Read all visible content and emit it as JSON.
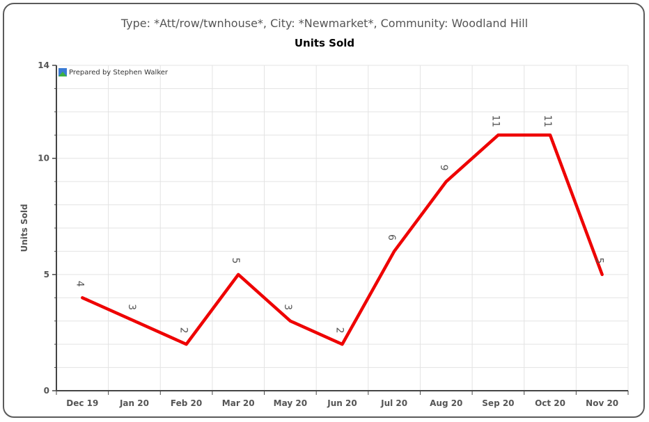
{
  "subtitle": "Type: *Att/row/twnhouse*, City: *Newmarket*, Community: Woodland Hill",
  "credit": "Prepared by Stephen Walker",
  "colors": {
    "line": "#ee0000",
    "grid": "#e3e3e3",
    "axis": "#444444",
    "label": "#555555"
  },
  "chart_data": {
    "type": "line",
    "title": "Units Sold",
    "ylabel": "Units Sold",
    "xlabel": "",
    "categories": [
      "Dec 19",
      "Jan 20",
      "Feb 20",
      "Mar 20",
      "May 20",
      "Jun 20",
      "Jul 20",
      "Aug 20",
      "Sep 20",
      "Oct 20",
      "Nov 20"
    ],
    "values": [
      4,
      3,
      2,
      5,
      3,
      2,
      6,
      9,
      11,
      11,
      5
    ],
    "data_labels": [
      "4",
      "3",
      "2",
      "5",
      "3",
      "2",
      "6",
      "9",
      "11",
      "11",
      "5"
    ],
    "ylim": [
      0,
      14
    ],
    "yticks": [
      0,
      5,
      10,
      14
    ],
    "grid": true,
    "legend": "none"
  }
}
